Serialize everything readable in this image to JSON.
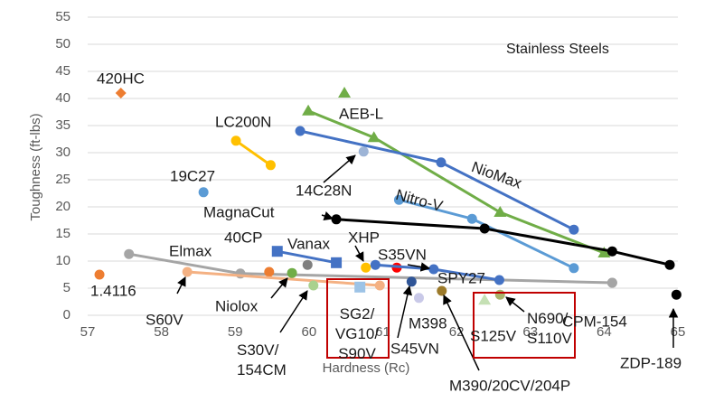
{
  "chart_data": {
    "type": "line",
    "annotation": "Stainless Steels",
    "x_label": "Hardness (Rc)",
    "y_label": "Toughness (ft-lbs)",
    "xlim": [
      57,
      65
    ],
    "xticks": [
      57,
      58,
      59,
      60,
      61,
      62,
      63,
      64,
      65
    ],
    "ylim": [
      0,
      55
    ],
    "yticks": [
      0,
      5,
      10,
      15,
      20,
      25,
      30,
      35,
      40,
      45,
      50,
      55
    ],
    "grid": true,
    "series": [
      {
        "name": "420HC",
        "color": "#ed7d31",
        "marker": "diamond",
        "x": [
          57.45
        ],
        "values": [
          41
        ]
      },
      {
        "name": "1.4116",
        "color": "#ed7d31",
        "marker": "circle",
        "x": [
          57.16
        ],
        "values": [
          7.5
        ]
      },
      {
        "name": "LC200N",
        "color": "#ffc000",
        "marker": "circle",
        "x": [
          59.01,
          59.48
        ],
        "values": [
          32.2,
          27.7
        ]
      },
      {
        "name": "19C27",
        "color": "#5b9bd5",
        "marker": "circle",
        "x": [
          58.57
        ],
        "values": [
          22.7
        ]
      },
      {
        "name": "AEB-L",
        "color": "#70ad47",
        "marker": "triangle",
        "x": [
          59.99,
          60.88,
          62.59,
          64.0
        ],
        "values": [
          37.7,
          32.8,
          19,
          11.5
        ]
      },
      {
        "color": "#70ad47",
        "marker": "triangle",
        "x": [
          60.48
        ],
        "values": [
          41
        ]
      },
      {
        "name": "NioMax",
        "color": "#4472c4",
        "marker": "circle",
        "x": [
          59.88,
          61.79,
          63.59
        ],
        "values": [
          34,
          28.2,
          15.8
        ]
      },
      {
        "name": "14C28N",
        "color": "#9db4d6",
        "marker": "circle",
        "x": [
          60.74
        ],
        "values": [
          30.2
        ]
      },
      {
        "name": "Nitro-V",
        "color": "#5b9bd5",
        "marker": "circle",
        "x": [
          61.22,
          62.21,
          63.59
        ],
        "values": [
          21.3,
          17.8,
          8.7
        ]
      },
      {
        "name": "MagnaCut",
        "color": "#000000",
        "marker": "circle",
        "x": [
          60.37,
          62.38,
          64.11,
          64.89
        ],
        "values": [
          17.7,
          16,
          11.8,
          9.3
        ]
      },
      {
        "name": "Elmax",
        "color": "#a5a5a5",
        "marker": "circle",
        "x": [
          57.56,
          59.07,
          64.11
        ],
        "values": [
          11.3,
          7.7,
          6
        ]
      },
      {
        "name": "Vanax",
        "color": "#4472c4",
        "marker": "square",
        "x": [
          59.57,
          60.37
        ],
        "values": [
          11.8,
          9.7
        ]
      },
      {
        "name": "40CP",
        "color": "#ed7d31",
        "marker": "circle",
        "x": [
          59.46
        ],
        "values": [
          8
        ]
      },
      {
        "name": "XHP",
        "color": "#ffc000",
        "marker": "circle",
        "x": [
          60.77
        ],
        "values": [
          8.8
        ]
      },
      {
        "name": "S35VN",
        "color": "#ff0000",
        "marker": "circle",
        "x": [
          61.19
        ],
        "values": [
          8.8
        ]
      },
      {
        "name": "SPY27",
        "color": "#4472c4",
        "marker": "circle",
        "x": [
          60.9,
          61.69,
          62.58
        ],
        "values": [
          9.3,
          8.5,
          6.5
        ]
      },
      {
        "color": "#7f7f7f",
        "marker": "circle",
        "x": [
          59.98
        ],
        "values": [
          9.3
        ]
      },
      {
        "name": "S60V",
        "color": "#f4b183",
        "marker": "circle",
        "x": [
          58.35,
          60.96
        ],
        "values": [
          8,
          5.5
        ]
      },
      {
        "name": "Niolox",
        "color": "#70ad47",
        "marker": "circle",
        "x": [
          59.77
        ],
        "values": [
          7.8
        ]
      },
      {
        "name": "S30V/154CM",
        "color": "#a9d18e",
        "marker": "circle",
        "x": [
          60.06
        ],
        "values": [
          5.5
        ]
      },
      {
        "name": "SG2/VG10/S90V",
        "color": "#9dc3e6",
        "marker": "square",
        "x": [
          60.69
        ],
        "values": [
          5.2
        ]
      },
      {
        "name": "S45VN",
        "color": "#2f5597",
        "marker": "circle",
        "x": [
          61.39
        ],
        "values": [
          6.2
        ]
      },
      {
        "name": "M398",
        "color": "#c9c9e8",
        "marker": "circle",
        "x": [
          61.49
        ],
        "values": [
          3.2
        ]
      },
      {
        "name": "M390/20CV/204P",
        "color": "#9c7a2a",
        "marker": "circle",
        "x": [
          61.8
        ],
        "values": [
          4.5
        ]
      },
      {
        "name": "S125V",
        "color": "#c5e0b4",
        "marker": "triangle",
        "x": [
          62.38
        ],
        "values": [
          2.8
        ]
      },
      {
        "name": "N690/S110V",
        "color": "#a9b56b",
        "marker": "circle",
        "x": [
          62.59
        ],
        "values": [
          3.8
        ]
      },
      {
        "name": "CPM-154",
        "color": "#a5a5a5",
        "marker": "circle",
        "x": [
          64.11
        ],
        "values": [
          6
        ]
      },
      {
        "name": "ZDP-189",
        "color": "#000000",
        "marker": "circle",
        "x": [
          64.98
        ],
        "values": [
          3.8
        ]
      }
    ]
  }
}
